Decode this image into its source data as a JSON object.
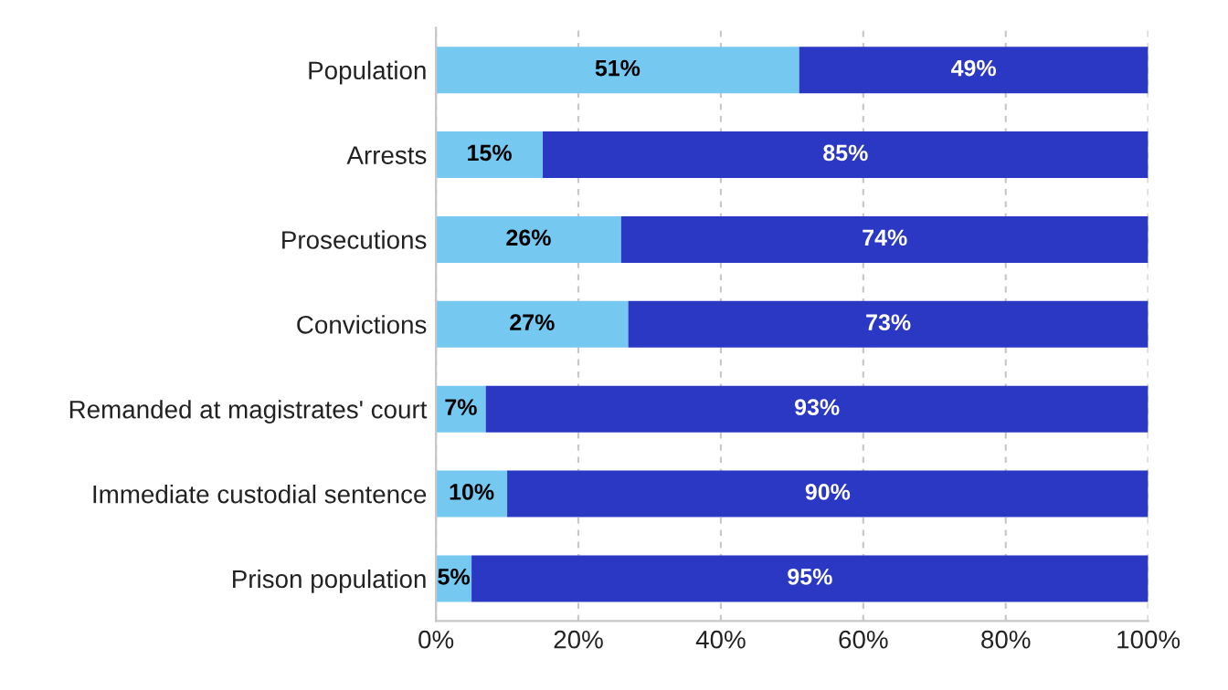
{
  "chart_data": {
    "type": "bar",
    "orientation": "horizontal",
    "stacked": true,
    "categories": [
      "Population",
      "Arrests",
      "Prosecutions",
      "Convictions",
      "Remanded at magistrates' court",
      "Immediate custodial sentence",
      "Prison population"
    ],
    "series": [
      {
        "color": "#75c8f0",
        "values": [
          51,
          15,
          26,
          27,
          7,
          10,
          5
        ],
        "value_labels": [
          "51%",
          "15%",
          "26%",
          "27%",
          "7%",
          "10%",
          "5%"
        ]
      },
      {
        "color": "#2b38c4",
        "values": [
          49,
          85,
          74,
          73,
          93,
          90,
          95
        ],
        "value_labels": [
          "49%",
          "85%",
          "74%",
          "73%",
          "93%",
          "90%",
          "95%"
        ]
      }
    ],
    "xlim": [
      0,
      100
    ],
    "xticks": [
      {
        "value": 0,
        "label": "0%"
      },
      {
        "value": 20,
        "label": "20%"
      },
      {
        "value": 40,
        "label": "40%"
      },
      {
        "value": 60,
        "label": "60%"
      },
      {
        "value": 80,
        "label": "80%"
      },
      {
        "value": 100,
        "label": "100%"
      }
    ],
    "grid": "x",
    "legend": false
  }
}
